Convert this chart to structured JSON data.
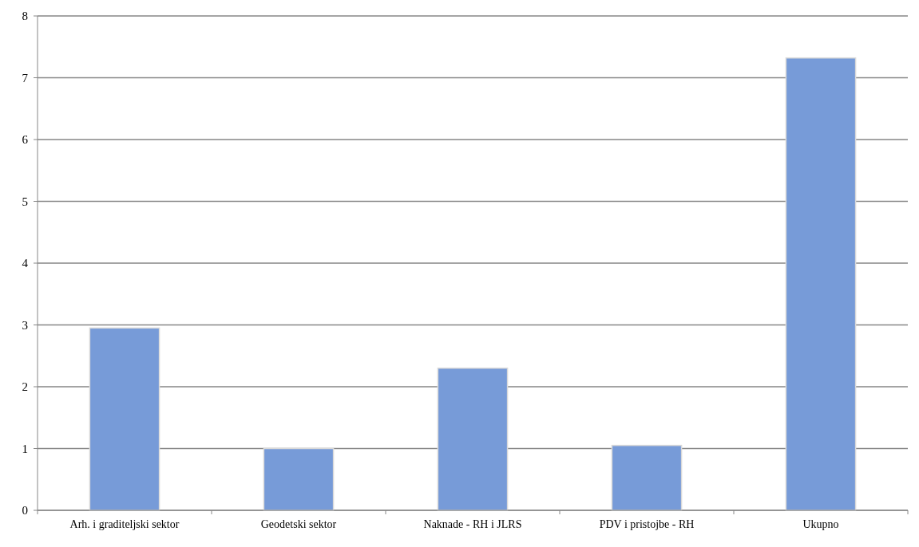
{
  "chart_data": {
    "type": "bar",
    "categories": [
      "Arh. i graditeljski sektor",
      "Geodetski sektor",
      "Naknade - RH i JLRS",
      "PDV i pristojbe - RH",
      "Ukupno"
    ],
    "values": [
      2.95,
      1.0,
      2.3,
      1.05,
      7.32
    ],
    "color": "#779bd8",
    "ylim": [
      0,
      8
    ],
    "yticks": [
      0,
      1,
      2,
      3,
      4,
      5,
      6,
      7,
      8
    ],
    "grid": "y"
  }
}
